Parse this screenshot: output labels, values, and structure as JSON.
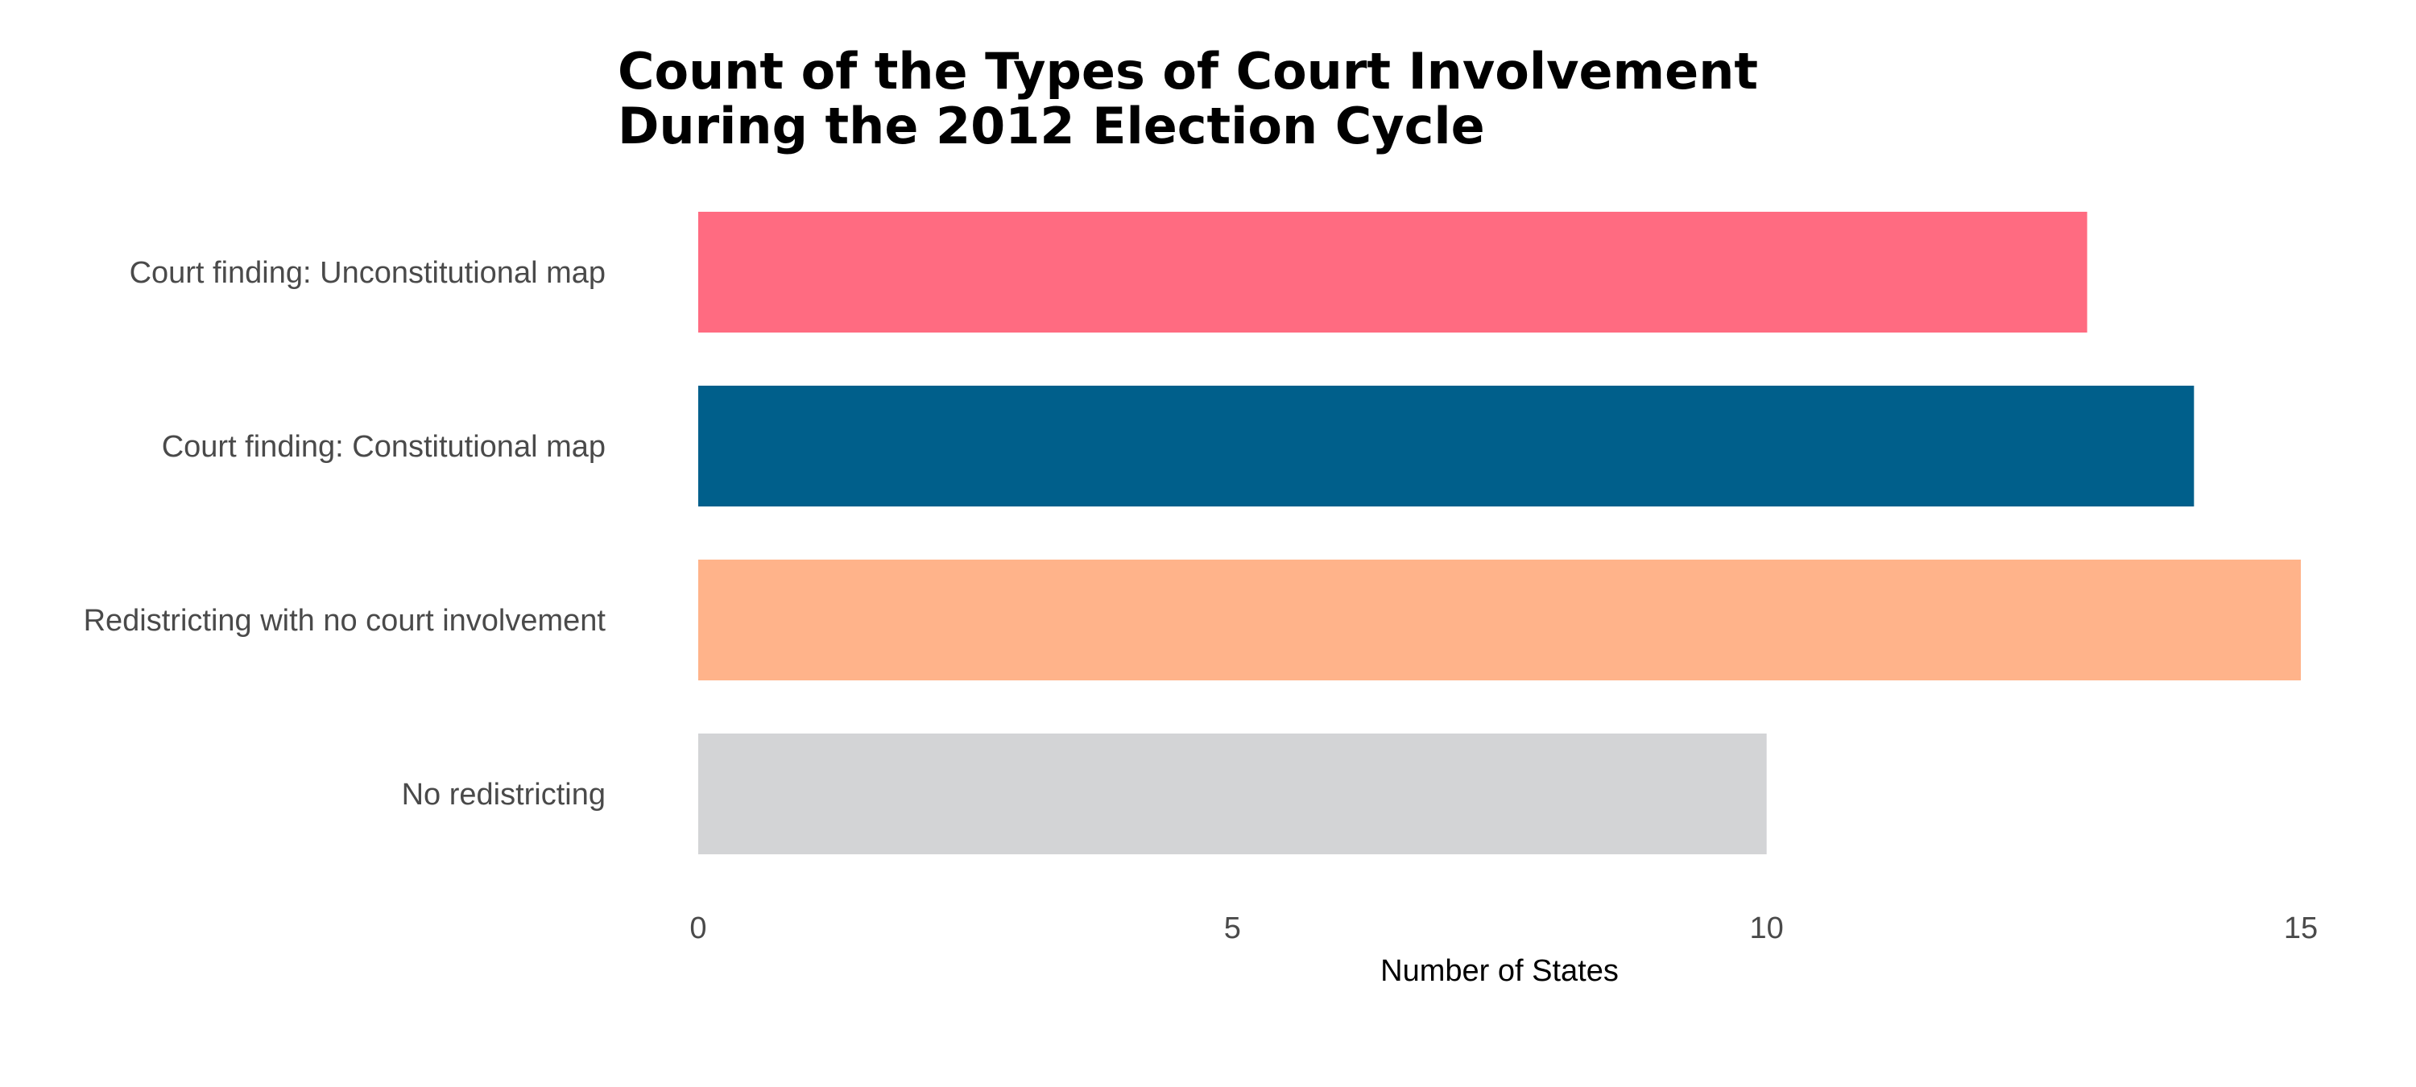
{
  "chart_data": {
    "type": "bar",
    "orientation": "horizontal",
    "title_lines": [
      "Count of the Types of Court Involvement",
      "During the 2012 Election Cycle"
    ],
    "xlabel": "Number of States",
    "ylabel": "",
    "categories": [
      "Court finding: Unconstitutional map",
      "Court finding: Constitutional map",
      "Redistricting with no court involvement",
      "No redistricting"
    ],
    "values": [
      13,
      14,
      15,
      10
    ],
    "colors": [
      "#ff6b81",
      "#005f8b",
      "#ffb38a",
      "#d3d4d6"
    ],
    "xlim": [
      0,
      15
    ],
    "xticks": [
      0,
      5,
      10,
      15
    ],
    "xtick_labels": [
      "0",
      "5",
      "10",
      "15"
    ],
    "grid": false,
    "legend": "none"
  }
}
